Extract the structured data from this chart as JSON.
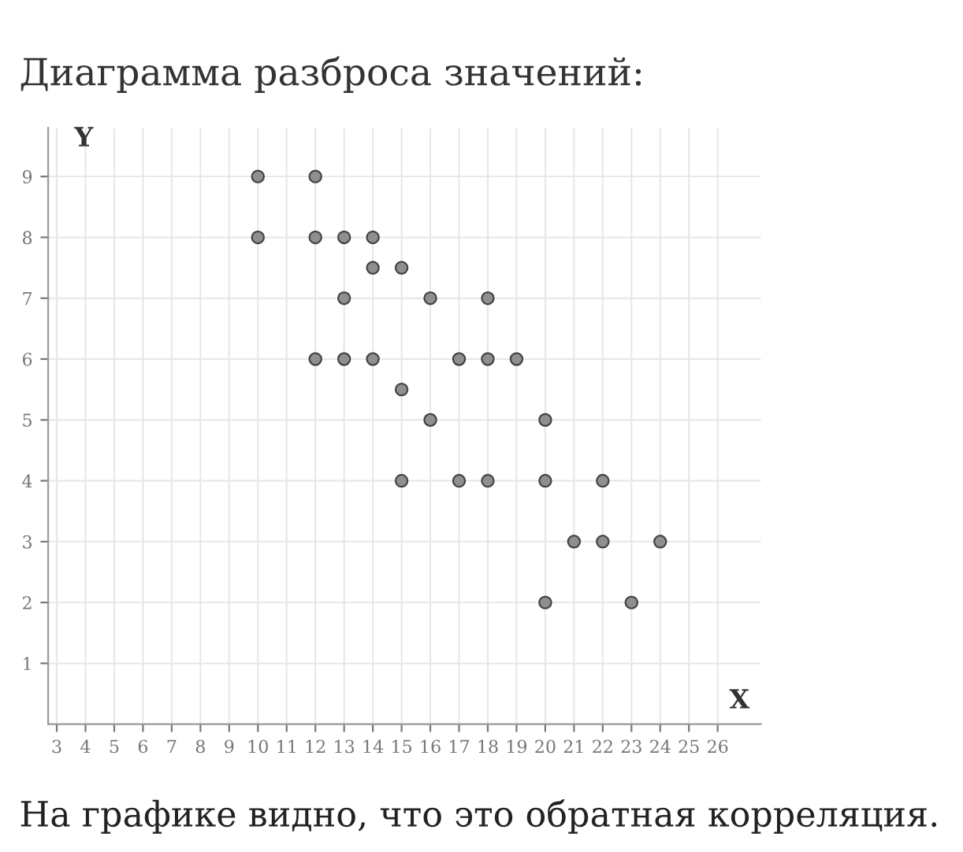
{
  "chart_data": {
    "type": "scatter",
    "title": "Диаграмма разброса значений:",
    "xlabel": "X",
    "ylabel": "Y",
    "annotations": [
      "На графике видно, что это обратная корреляция."
    ],
    "x": [
      10,
      10,
      12,
      12,
      13,
      14,
      14,
      15,
      13,
      16,
      18,
      12,
      13,
      14,
      17,
      18,
      19,
      15,
      16,
      20,
      15,
      17,
      18,
      20,
      22,
      21,
      22,
      24,
      20,
      23
    ],
    "values": [
      9,
      8,
      9,
      8,
      8,
      8,
      7.5,
      7.5,
      7,
      7,
      7,
      6,
      6,
      6,
      6,
      6,
      6,
      5.5,
      5,
      5,
      4,
      4,
      4,
      4,
      4,
      3,
      3,
      3,
      2,
      2
    ],
    "color": "#8f8f8f",
    "marker": "circle",
    "grid": true,
    "xlim": [
      2.7,
      27.5
    ],
    "xticks": [
      3,
      4,
      5,
      6,
      7,
      8,
      9,
      10,
      11,
      12,
      13,
      14,
      15,
      16,
      17,
      18,
      19,
      20,
      21,
      22,
      23,
      24,
      25,
      26
    ],
    "ylim": [
      0,
      9.8
    ],
    "yticks": [
      1,
      2,
      3,
      4,
      5,
      6,
      7,
      8,
      9
    ]
  }
}
